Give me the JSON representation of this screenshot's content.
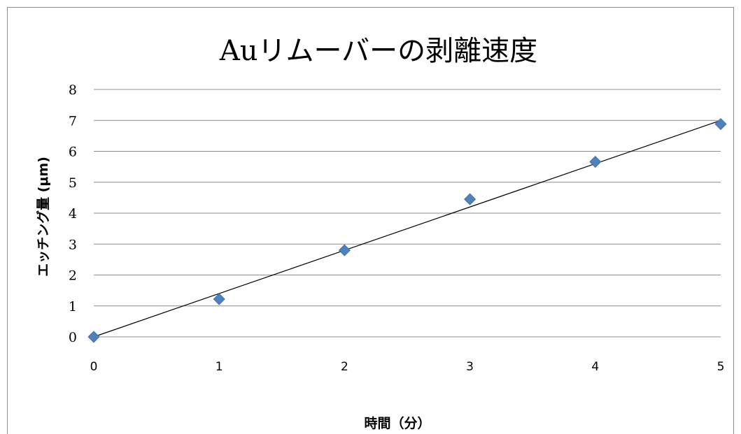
{
  "chart_data": {
    "type": "scatter",
    "title": "Auリムーバーの剥離速度",
    "xlabel": "時間（分）",
    "ylabel": "エッチング量 (μm)",
    "xlim": [
      0,
      5
    ],
    "ylim": [
      0,
      8
    ],
    "xticks": [
      "0",
      "1",
      "2",
      "3",
      "4",
      "5"
    ],
    "yticks": [
      "0",
      "1",
      "2",
      "3",
      "4",
      "5",
      "6",
      "7",
      "8"
    ],
    "grid": true,
    "legend": "none",
    "series": [
      {
        "marker": "diamond",
        "color": "#4f81bd",
        "x": [
          0,
          1,
          2,
          3,
          4,
          5
        ],
        "y": [
          0,
          1.22,
          2.8,
          4.45,
          5.66,
          6.88
        ]
      }
    ],
    "trendline": {
      "type": "linear",
      "color": "#000000",
      "x": [
        0,
        5
      ],
      "y": [
        0,
        7.0
      ]
    }
  }
}
